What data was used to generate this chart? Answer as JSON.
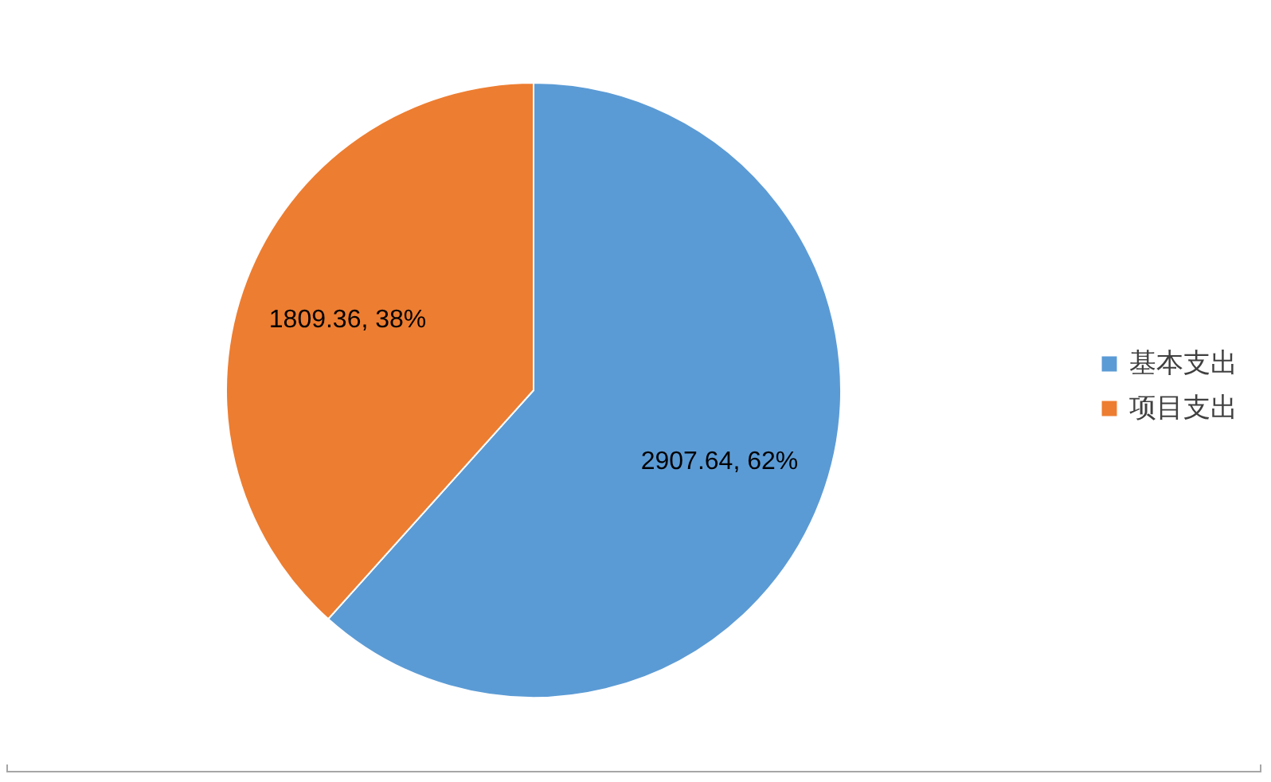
{
  "chart_data": {
    "type": "pie",
    "categories": [
      "基本支出",
      "项目支出"
    ],
    "values": [
      2907.64,
      1809.36
    ],
    "colors": [
      "#5b9bd5",
      "#ed7d31"
    ],
    "value_labels": [
      "2907.64, 62%",
      "1809.36, 38%"
    ],
    "legend": "right"
  }
}
